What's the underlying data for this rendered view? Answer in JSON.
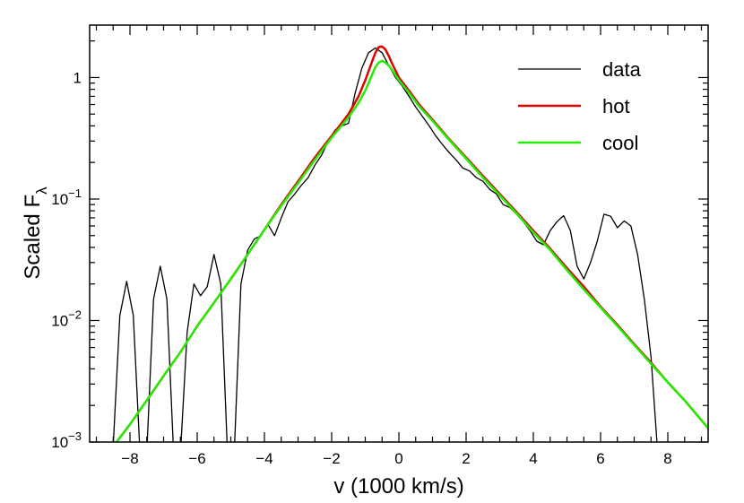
{
  "chart_data": {
    "type": "line",
    "xlabel": "v (1000 km/s)",
    "ylabel_main": "Scaled F",
    "ylabel_sub": "λ",
    "xlim": [
      -9.2,
      9.2
    ],
    "ylim": [
      0.001,
      2.7
    ],
    "yscale": "log",
    "legend_position": "top-right",
    "x_ticks": [
      -8,
      -6,
      -4,
      -2,
      0,
      2,
      4,
      6,
      8
    ],
    "x_tick_labels": [
      "−8",
      "−6",
      "−4",
      "−2",
      "0",
      "2",
      "4",
      "6",
      "8"
    ],
    "y_ticks": [
      {
        "value": 1,
        "base": "1",
        "exp": ""
      },
      {
        "value": 0.1,
        "base": "10",
        "exp": "−1"
      },
      {
        "value": 0.01,
        "base": "10",
        "exp": "−2"
      },
      {
        "value": 0.001,
        "base": "10",
        "exp": "−3"
      }
    ],
    "series": [
      {
        "name": "data",
        "color": "#000000",
        "width": 1.3,
        "x": [
          -8.5,
          -8.3,
          -8.1,
          -7.9,
          -7.7,
          -7.5,
          -7.3,
          -7.1,
          -6.9,
          -6.7,
          -6.5,
          -6.3,
          -6.1,
          -5.9,
          -5.7,
          -5.5,
          -5.3,
          -5.1,
          -4.9,
          -4.7,
          -4.5,
          -4.3,
          -4.1,
          -3.9,
          -3.7,
          -3.5,
          -3.3,
          -3.1,
          -2.9,
          -2.7,
          -2.5,
          -2.3,
          -2.1,
          -1.9,
          -1.7,
          -1.5,
          -1.3,
          -1.1,
          -0.9,
          -0.7,
          -0.5,
          -0.3,
          -0.1,
          0.1,
          0.3,
          0.5,
          0.7,
          0.9,
          1.1,
          1.3,
          1.5,
          1.7,
          1.9,
          2.1,
          2.3,
          2.5,
          2.7,
          2.9,
          3.1,
          3.3,
          3.5,
          3.7,
          3.9,
          4.1,
          4.3,
          4.5,
          4.7,
          4.9,
          5.1,
          5.3,
          5.5,
          5.7,
          5.9,
          6.1,
          6.3,
          6.5,
          6.7,
          6.9,
          7.1,
          7.3,
          7.5,
          7.7,
          7.9,
          8.1
        ],
        "y": [
          0.0009,
          0.011,
          0.021,
          0.011,
          0.0008,
          0.0008,
          0.015,
          0.028,
          0.015,
          0.0008,
          0.0008,
          0.008,
          0.02,
          0.016,
          0.019,
          0.035,
          0.02,
          0.0008,
          0.0008,
          0.02,
          0.038,
          0.047,
          0.05,
          0.062,
          0.05,
          0.07,
          0.095,
          0.11,
          0.13,
          0.15,
          0.19,
          0.23,
          0.3,
          0.37,
          0.4,
          0.42,
          0.75,
          1.2,
          1.6,
          1.75,
          1.6,
          1.25,
          1.0,
          0.85,
          0.7,
          0.57,
          0.48,
          0.4,
          0.33,
          0.28,
          0.24,
          0.21,
          0.18,
          0.17,
          0.15,
          0.14,
          0.12,
          0.11,
          0.09,
          0.085,
          0.075,
          0.065,
          0.055,
          0.045,
          0.042,
          0.055,
          0.065,
          0.073,
          0.055,
          0.028,
          0.022,
          0.03,
          0.045,
          0.075,
          0.072,
          0.058,
          0.066,
          0.06,
          0.035,
          0.015,
          0.005,
          0.0008,
          0.0008,
          0.0008
        ]
      },
      {
        "name": "hot",
        "color": "#e00000",
        "width": 2.5,
        "x": [
          -8.4,
          -8.0,
          -7.5,
          -7.0,
          -6.5,
          -6.0,
          -5.5,
          -5.0,
          -4.5,
          -4.0,
          -3.5,
          -3.0,
          -2.5,
          -2.0,
          -1.5,
          -1.2,
          -1.0,
          -0.8,
          -0.7,
          -0.6,
          -0.5,
          -0.4,
          -0.3,
          -0.2,
          0.0,
          0.3,
          0.6,
          1.0,
          1.5,
          2.0,
          2.5,
          3.0,
          3.5,
          4.0,
          4.5,
          5.0,
          5.5,
          6.0,
          6.5,
          7.0,
          7.5,
          8.0,
          8.5,
          9.2
        ],
        "y": [
          0.001,
          0.0014,
          0.0022,
          0.0035,
          0.0055,
          0.009,
          0.014,
          0.022,
          0.035,
          0.056,
          0.09,
          0.14,
          0.22,
          0.33,
          0.5,
          0.7,
          0.95,
          1.35,
          1.6,
          1.78,
          1.8,
          1.7,
          1.5,
          1.3,
          1.0,
          0.78,
          0.6,
          0.45,
          0.31,
          0.22,
          0.155,
          0.11,
          0.078,
          0.055,
          0.039,
          0.027,
          0.019,
          0.013,
          0.0092,
          0.0064,
          0.0045,
          0.0031,
          0.0022,
          0.0013
        ]
      },
      {
        "name": "cool",
        "color": "#22ee00",
        "width": 2.5,
        "x": [
          -8.4,
          -8.0,
          -7.5,
          -7.0,
          -6.5,
          -6.0,
          -5.5,
          -5.0,
          -4.5,
          -4.0,
          -3.5,
          -3.0,
          -2.5,
          -2.0,
          -1.5,
          -1.2,
          -1.0,
          -0.8,
          -0.7,
          -0.6,
          -0.5,
          -0.4,
          -0.3,
          -0.2,
          0.0,
          0.3,
          0.6,
          1.0,
          1.5,
          2.0,
          2.5,
          3.0,
          3.5,
          4.0,
          4.5,
          5.0,
          5.5,
          6.0,
          6.5,
          7.0,
          7.5,
          8.0,
          8.5,
          9.2
        ],
        "y": [
          0.001,
          0.0014,
          0.0022,
          0.0035,
          0.0055,
          0.009,
          0.014,
          0.022,
          0.035,
          0.056,
          0.088,
          0.135,
          0.21,
          0.32,
          0.47,
          0.62,
          0.78,
          1.05,
          1.22,
          1.33,
          1.37,
          1.33,
          1.25,
          1.15,
          0.95,
          0.75,
          0.58,
          0.44,
          0.305,
          0.215,
          0.15,
          0.107,
          0.076,
          0.053,
          0.038,
          0.026,
          0.018,
          0.0128,
          0.009,
          0.0063,
          0.0044,
          0.0031,
          0.0022,
          0.0013
        ]
      }
    ]
  }
}
